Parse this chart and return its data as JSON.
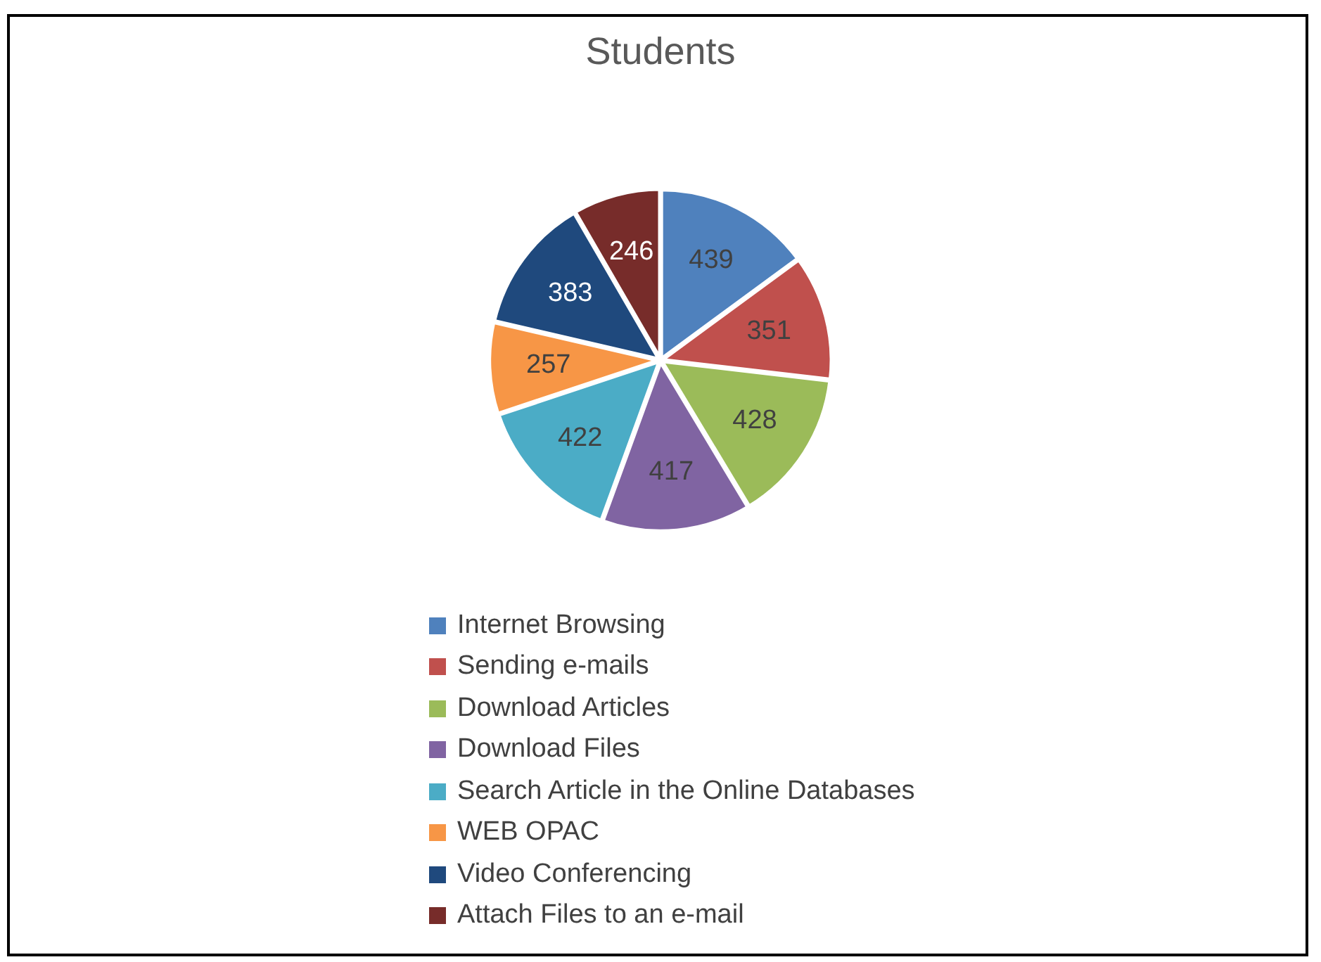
{
  "chart_data": {
    "type": "pie",
    "title": "Students",
    "categories": [
      "Internet Browsing",
      "Sending e-mails",
      "Download Articles",
      "Download Files",
      "Search Article in the Online Databases",
      "WEB OPAC",
      "Video Conferencing",
      "Attach Files to an e-mail"
    ],
    "values": [
      439,
      351,
      428,
      417,
      422,
      257,
      383,
      246
    ],
    "colors": [
      "#4f81bd",
      "#c0504d",
      "#9bbb59",
      "#8064a2",
      "#4bacc6",
      "#f79646",
      "#1f497d",
      "#772c2a"
    ],
    "data_labels": true,
    "legend": "bottom"
  }
}
